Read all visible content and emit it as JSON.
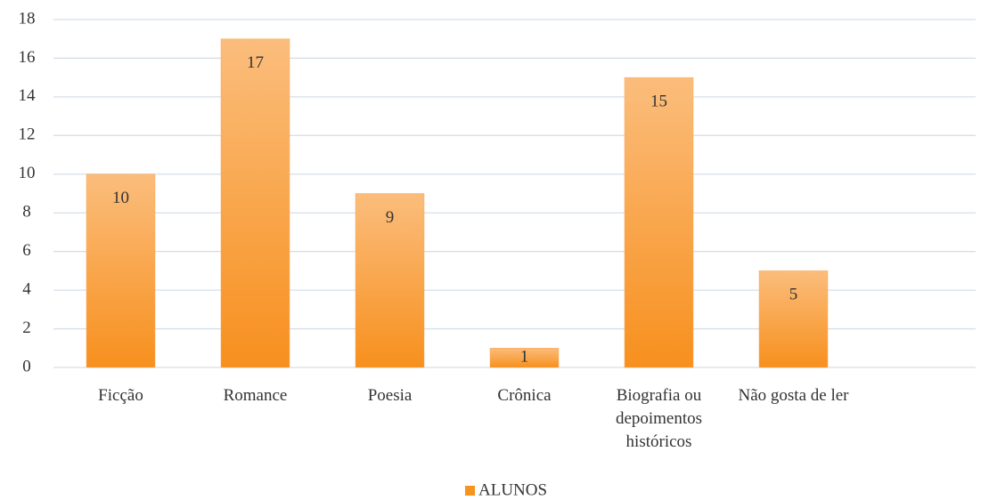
{
  "chart_data": {
    "type": "bar",
    "categories": [
      "Ficção",
      "Romance",
      "Poesia",
      "Crônica",
      "Biografia ou depoimentos históricos",
      "Não gosta de ler",
      null
    ],
    "series": [
      {
        "name": "ALUNOS",
        "color": "#f7941d",
        "values": [
          10,
          17,
          9,
          1,
          15,
          5,
          null
        ]
      }
    ],
    "ylim": [
      0,
      18
    ],
    "yticks": [
      0,
      2,
      4,
      6,
      8,
      10,
      12,
      14,
      16,
      18
    ],
    "grid": true,
    "legend": "bottom"
  }
}
